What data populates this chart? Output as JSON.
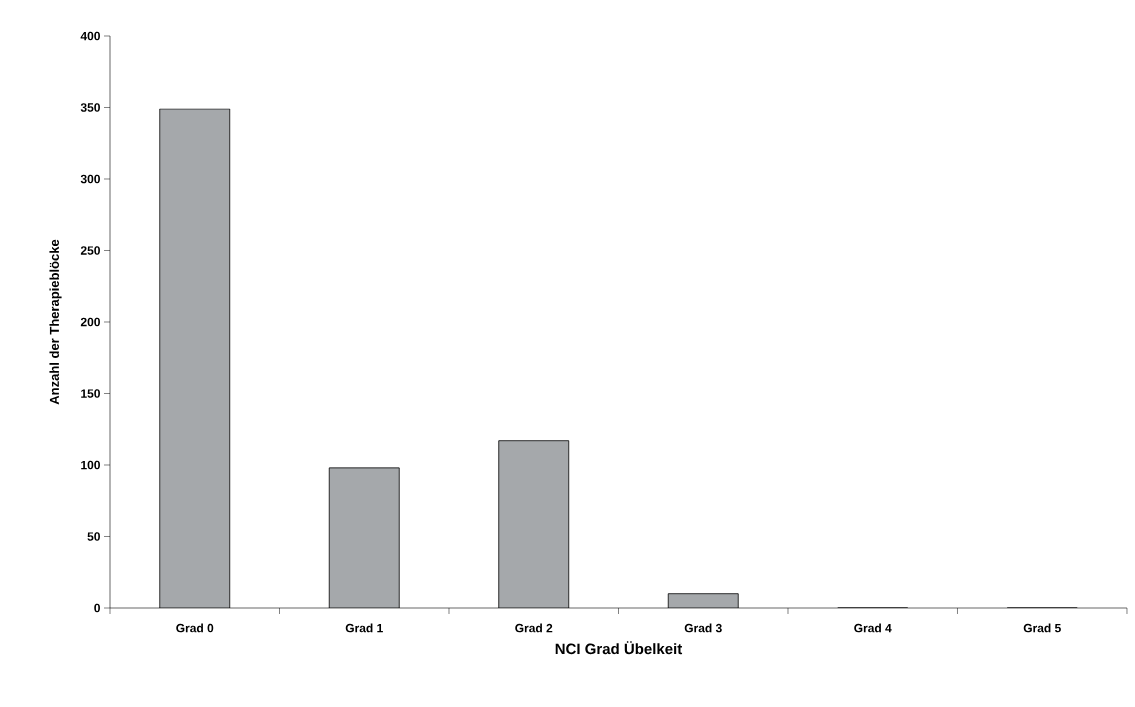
{
  "chart_data": {
    "type": "bar",
    "xlabel": "NCI Grad Übelkeit",
    "ylabel": "Anzahl der Therapieblöcke",
    "categories": [
      "Grad 0",
      "Grad 1",
      "Grad 2",
      "Grad 3",
      "Grad 4",
      "Grad 5"
    ],
    "values": [
      349,
      98,
      117,
      10,
      0,
      0
    ],
    "color": "#a5a8ab",
    "ylim": [
      0,
      400
    ],
    "yticks": [
      0,
      50,
      100,
      150,
      200,
      250,
      300,
      350,
      400
    ],
    "grid": false
  }
}
